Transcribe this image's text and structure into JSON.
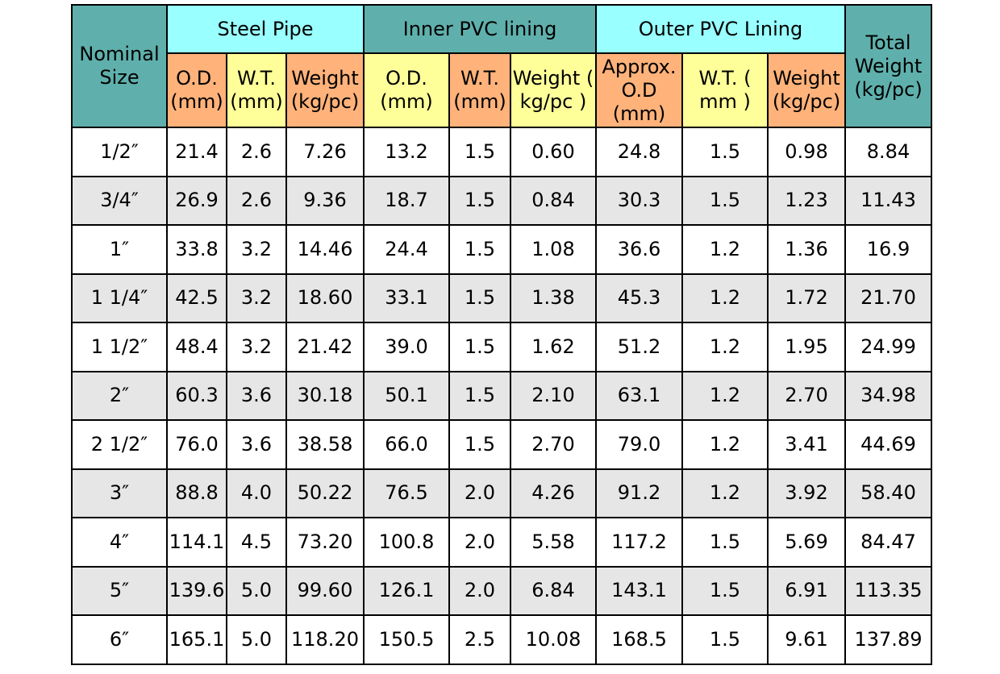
{
  "headers": {
    "nominal_size": "Nominal Size",
    "steel_pipe": "Steel Pipe",
    "inner_pvc": "Inner PVC lining",
    "outer_pvc": "Outer PVC Lining",
    "total_weight": "Total Weight (kg/pc)",
    "steel_od": "O.D. (mm)",
    "steel_wt": "W.T. (mm)",
    "steel_weight": "Weight (kg/pc)",
    "inner_od": "O.D. (mm)",
    "inner_wt": "W.T. (mm)",
    "inner_weight": "Weight ( kg/pc )",
    "outer_od": "Approx. O.D (mm)",
    "outer_wt": "W.T. ( mm )",
    "outer_weight": "Weight (kg/pc)"
  },
  "colors": {
    "teal": "#5fb0ac",
    "cyan": "#99ffff",
    "orange": "#ffb27a",
    "yellow": "#ffff99",
    "alt_row": "#e6e6e6"
  },
  "rows": [
    [
      "1/2″",
      "21.4",
      "2.6",
      "7.26",
      "13.2",
      "1.5",
      "0.60",
      "24.8",
      "1.5",
      "0.98",
      "8.84"
    ],
    [
      "3/4″",
      "26.9",
      "2.6",
      "9.36",
      "18.7",
      "1.5",
      "0.84",
      "30.3",
      "1.5",
      "1.23",
      "11.43"
    ],
    [
      "1″",
      "33.8",
      "3.2",
      "14.46",
      "24.4",
      "1.5",
      "1.08",
      "36.6",
      "1.2",
      "1.36",
      "16.9"
    ],
    [
      "1 1/4″",
      "42.5",
      "3.2",
      "18.60",
      "33.1",
      "1.5",
      "1.38",
      "45.3",
      "1.2",
      "1.72",
      "21.70"
    ],
    [
      "1 1/2″",
      "48.4",
      "3.2",
      "21.42",
      "39.0",
      "1.5",
      "1.62",
      "51.2",
      "1.2",
      "1.95",
      "24.99"
    ],
    [
      "2″",
      "60.3",
      "3.6",
      "30.18",
      "50.1",
      "1.5",
      "2.10",
      "63.1",
      "1.2",
      "2.70",
      "34.98"
    ],
    [
      "2 1/2″",
      "76.0",
      "3.6",
      "38.58",
      "66.0",
      "1.5",
      "2.70",
      "79.0",
      "1.2",
      "3.41",
      "44.69"
    ],
    [
      "3″",
      "88.8",
      "4.0",
      "50.22",
      "76.5",
      "2.0",
      "4.26",
      "91.2",
      "1.2",
      "3.92",
      "58.40"
    ],
    [
      "4″",
      "114.1",
      "4.5",
      "73.20",
      "100.8",
      "2.0",
      "5.58",
      "117.2",
      "1.5",
      "5.69",
      "84.47"
    ],
    [
      "5″",
      "139.6",
      "5.0",
      "99.60",
      "126.1",
      "2.0",
      "6.84",
      "143.1",
      "1.5",
      "6.91",
      "113.35"
    ],
    [
      "6″",
      "165.1",
      "5.0",
      "118.20",
      "150.5",
      "2.5",
      "10.08",
      "168.5",
      "1.5",
      "9.61",
      "137.89"
    ]
  ]
}
